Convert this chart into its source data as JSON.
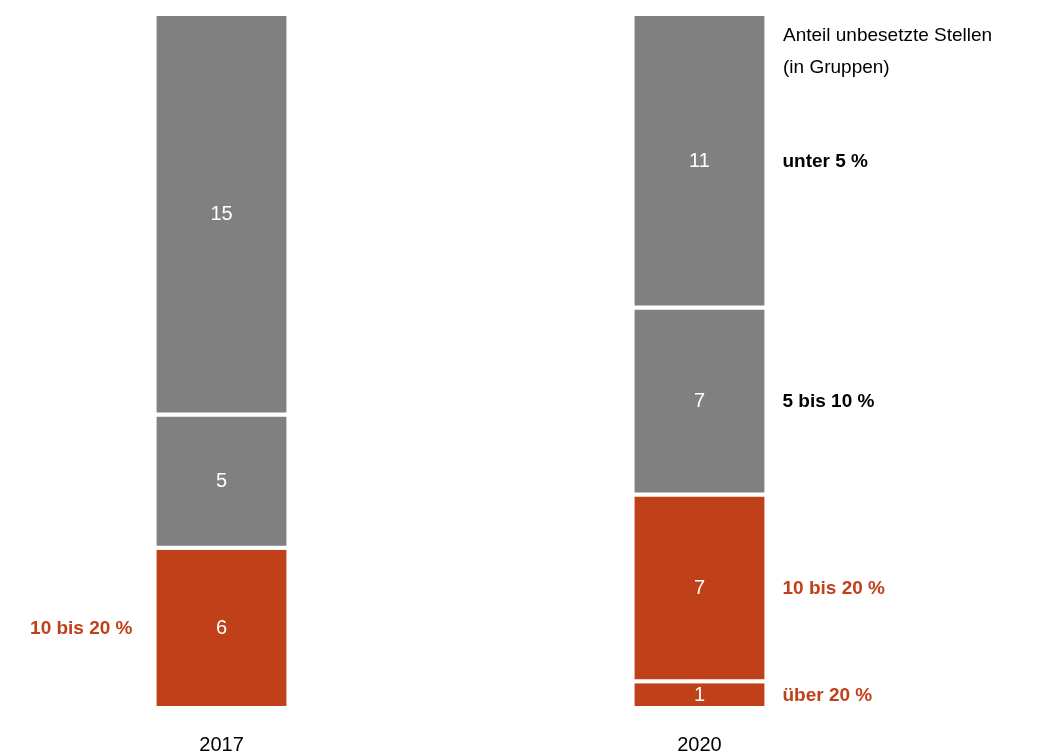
{
  "chart_data": {
    "type": "bar",
    "stacked": true,
    "data_labels": true,
    "categories": [
      "2017",
      "2020"
    ],
    "legend_title": "Anteil unbesetzte Stellen\n(in Gruppen)",
    "series": [
      {
        "name": "über 20 %",
        "color": "#c0401a",
        "values": [
          null,
          1
        ]
      },
      {
        "name": "10 bis 20 %",
        "color": "#c0401a",
        "values": [
          6,
          7
        ]
      },
      {
        "name": "5 bis 10 %",
        "color": "#808080",
        "values": [
          5,
          7
        ]
      },
      {
        "name": "unter 5 %",
        "color": "#808080",
        "values": [
          15,
          11
        ]
      }
    ],
    "annotations": [
      "10 bis 20 %"
    ]
  }
}
